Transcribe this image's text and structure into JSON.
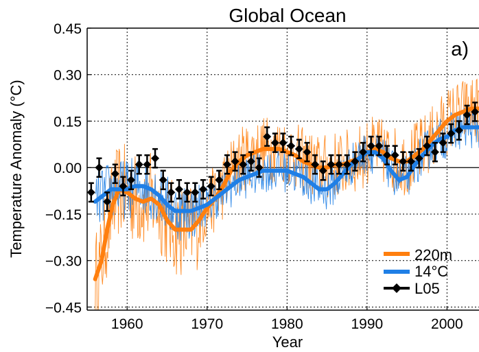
{
  "chart_data": {
    "type": "line",
    "title": "Global Ocean",
    "panel_label": "a)",
    "xlabel": "Year",
    "ylabel": "Temperature Anomaly (°C)",
    "xlim": [
      1955,
      2004
    ],
    "ylim": [
      -0.46,
      0.45
    ],
    "x_ticks": [
      1960,
      1970,
      1980,
      1990,
      2000
    ],
    "y_ticks": [
      -0.45,
      -0.3,
      -0.15,
      0.0,
      0.15,
      0.3,
      0.45
    ],
    "y_tick_labels": [
      "−0.45",
      "−0.30",
      "−0.15",
      "0.00",
      "0.15",
      "0.30",
      "0.45"
    ],
    "grid": true,
    "zero_line": true,
    "legend_position": "bottom-right",
    "series": [
      {
        "name": "220m",
        "color": "#ff7f0e",
        "smooth_points": [
          [
            1956.0,
            -0.36
          ],
          [
            1956.8,
            -0.3
          ],
          [
            1957.5,
            -0.2
          ],
          [
            1958.2,
            -0.12
          ],
          [
            1959.0,
            -0.07
          ],
          [
            1960.0,
            -0.08
          ],
          [
            1961.0,
            -0.1
          ],
          [
            1962.0,
            -0.11
          ],
          [
            1963.0,
            -0.1
          ],
          [
            1964.0,
            -0.12
          ],
          [
            1965.0,
            -0.17
          ],
          [
            1966.0,
            -0.2
          ],
          [
            1967.0,
            -0.2
          ],
          [
            1968.0,
            -0.2
          ],
          [
            1969.0,
            -0.17
          ],
          [
            1970.0,
            -0.13
          ],
          [
            1971.0,
            -0.1
          ],
          [
            1972.0,
            -0.06
          ],
          [
            1973.0,
            -0.01
          ],
          [
            1974.0,
            0.02
          ],
          [
            1975.0,
            0.04
          ],
          [
            1976.0,
            0.05
          ],
          [
            1977.0,
            0.06
          ],
          [
            1978.0,
            0.06
          ],
          [
            1979.0,
            0.06
          ],
          [
            1980.0,
            0.05
          ],
          [
            1981.0,
            0.04
          ],
          [
            1982.0,
            0.02
          ],
          [
            1983.0,
            0.01
          ],
          [
            1984.0,
            0.0
          ],
          [
            1985.0,
            0.0
          ],
          [
            1986.0,
            0.01
          ],
          [
            1987.0,
            0.01
          ],
          [
            1988.0,
            0.02
          ],
          [
            1989.0,
            0.03
          ],
          [
            1990.0,
            0.05
          ],
          [
            1991.0,
            0.06
          ],
          [
            1992.0,
            0.05
          ],
          [
            1993.0,
            0.03
          ],
          [
            1994.0,
            0.02
          ],
          [
            1995.0,
            0.02
          ],
          [
            1996.0,
            0.04
          ],
          [
            1997.0,
            0.06
          ],
          [
            1998.0,
            0.09
          ],
          [
            1999.0,
            0.12
          ],
          [
            2000.0,
            0.15
          ],
          [
            2001.0,
            0.17
          ],
          [
            2002.0,
            0.18
          ],
          [
            2003.0,
            0.19
          ],
          [
            2004.0,
            0.19
          ]
        ]
      },
      {
        "name": "14°C",
        "color": "#1f7fe6",
        "smooth_points": [
          [
            1956.0,
            -0.11
          ],
          [
            1957.0,
            -0.09
          ],
          [
            1958.0,
            -0.07
          ],
          [
            1959.0,
            -0.07
          ],
          [
            1960.0,
            -0.07
          ],
          [
            1961.0,
            -0.06
          ],
          [
            1962.0,
            -0.06
          ],
          [
            1963.0,
            -0.07
          ],
          [
            1964.0,
            -0.09
          ],
          [
            1965.0,
            -0.12
          ],
          [
            1966.0,
            -0.14
          ],
          [
            1967.0,
            -0.14
          ],
          [
            1968.0,
            -0.14
          ],
          [
            1969.0,
            -0.13
          ],
          [
            1970.0,
            -0.12
          ],
          [
            1971.0,
            -0.1
          ],
          [
            1972.0,
            -0.08
          ],
          [
            1973.0,
            -0.06
          ],
          [
            1974.0,
            -0.04
          ],
          [
            1975.0,
            -0.03
          ],
          [
            1976.0,
            -0.02
          ],
          [
            1977.0,
            -0.01
          ],
          [
            1978.0,
            -0.01
          ],
          [
            1979.0,
            -0.01
          ],
          [
            1980.0,
            -0.01
          ],
          [
            1981.0,
            -0.02
          ],
          [
            1982.0,
            -0.03
          ],
          [
            1983.0,
            -0.05
          ],
          [
            1984.0,
            -0.07
          ],
          [
            1985.0,
            -0.07
          ],
          [
            1986.0,
            -0.05
          ],
          [
            1987.0,
            -0.02
          ],
          [
            1988.0,
            0.01
          ],
          [
            1989.0,
            0.03
          ],
          [
            1990.0,
            0.05
          ],
          [
            1991.0,
            0.05
          ],
          [
            1992.0,
            0.03
          ],
          [
            1993.0,
            -0.01
          ],
          [
            1994.0,
            -0.04
          ],
          [
            1995.0,
            -0.03
          ],
          [
            1996.0,
            0.01
          ],
          [
            1997.0,
            0.04
          ],
          [
            1998.0,
            0.07
          ],
          [
            1999.0,
            0.09
          ],
          [
            2000.0,
            0.1
          ],
          [
            2001.0,
            0.12
          ],
          [
            2002.0,
            0.13
          ],
          [
            2003.0,
            0.13
          ],
          [
            2004.0,
            0.13
          ]
        ]
      },
      {
        "name": "L05",
        "color": "#000000",
        "marker": "diamond",
        "error_bar": 0.03,
        "x": [
          1955.5,
          1956.5,
          1957.5,
          1958.5,
          1959.5,
          1960.5,
          1961.5,
          1962.5,
          1963.5,
          1964.5,
          1965.5,
          1966.5,
          1967.5,
          1968.5,
          1969.5,
          1970.5,
          1971.5,
          1972.5,
          1973.5,
          1974.5,
          1975.5,
          1976.5,
          1977.5,
          1978.5,
          1979.5,
          1980.5,
          1981.5,
          1982.5,
          1983.5,
          1984.5,
          1985.5,
          1986.5,
          1987.5,
          1988.5,
          1989.5,
          1990.5,
          1991.5,
          1992.5,
          1993.5,
          1994.5,
          1995.5,
          1996.5,
          1997.5,
          1998.5,
          1999.5,
          2000.5,
          2001.5,
          2002.5,
          2003.5
        ],
        "y": [
          -0.08,
          0.0,
          -0.11,
          -0.02,
          -0.06,
          -0.04,
          0.01,
          0.01,
          0.03,
          -0.04,
          -0.08,
          -0.07,
          -0.08,
          -0.08,
          -0.07,
          -0.06,
          -0.04,
          0.01,
          0.02,
          0.01,
          0.02,
          0.0,
          0.1,
          0.08,
          0.08,
          0.07,
          0.06,
          0.05,
          0.01,
          -0.01,
          0.01,
          0.01,
          0.01,
          0.02,
          0.05,
          0.07,
          0.07,
          0.04,
          0.04,
          0.02,
          0.02,
          0.03,
          0.07,
          0.05,
          0.08,
          0.11,
          0.12,
          0.17,
          0.18
        ]
      }
    ]
  }
}
